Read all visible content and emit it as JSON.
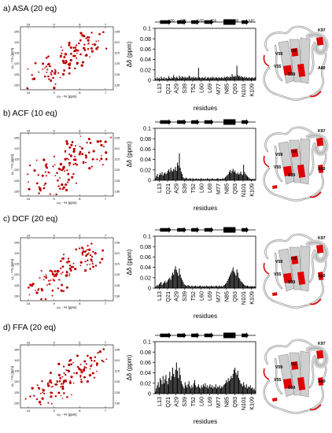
{
  "chart_data": [
    {
      "type": "bar",
      "panel_title": "a) ASA (20 eq)",
      "hsqc": {
        "x_ticks": [
          "10",
          "9",
          "8",
          "7"
        ],
        "y_ticks": [
          "105",
          "110",
          "115",
          "120",
          "125",
          "130"
        ],
        "x_label": "ω₂ - ¹H (ppm)",
        "y_label": "ω₁ - ¹⁵N (ppm)",
        "spread": 1.0
      },
      "ylabel": "Δδ (ppm)",
      "xlabel": "residues",
      "ylim": [
        0,
        0.1
      ],
      "y_ticks": [
        "0",
        "0.02",
        "0.04",
        "0.06",
        "0.08",
        "0.1"
      ],
      "x_tick_labels": [
        "L13",
        "Q21",
        "A29",
        "S39",
        "T52",
        "L60",
        "L69",
        "M77",
        "N85",
        "Q93",
        "N101",
        "K109"
      ],
      "secondary_structure_labels": [
        "I36",
        "S39",
        "V55",
        "V59",
        "A89",
        "K97"
      ],
      "structure_labels": [
        "K97",
        "V59",
        "I36",
        "V55",
        "A89",
        "S39"
      ],
      "values": [
        0.004,
        0.002,
        0.006,
        0.003,
        0.005,
        0.002,
        0.007,
        0.004,
        0.003,
        0.006,
        0.002,
        0.005,
        0.004,
        0.003,
        0.008,
        0.005,
        0.003,
        0.006,
        0.004,
        0.01,
        0.006,
        0.004,
        0.007,
        0.005,
        0.003,
        0.009,
        0.006,
        0.004,
        0.008,
        0.006,
        0.005,
        0.007,
        0.004,
        0.006,
        0.005,
        0.009,
        0.007,
        0.004,
        0.006,
        0.005,
        0.007,
        0.004,
        0.006,
        0.005,
        0.005,
        0.024,
        0.006,
        0.004,
        0.005,
        0.006,
        0.004,
        0.005,
        0.007,
        0.003,
        0.005,
        0.006,
        0.004,
        0.005,
        0.006,
        0.004,
        0.007,
        0.005,
        0.004,
        0.006,
        0.005,
        0.004,
        0.006,
        0.005,
        0.004,
        0.006,
        0.005,
        0.004,
        0.007,
        0.005,
        0.006,
        0.008,
        0.006,
        0.005,
        0.007,
        0.006,
        0.012,
        0.008,
        0.006,
        0.009,
        0.007,
        0.028,
        0.01,
        0.007,
        0.009,
        0.006,
        0.008,
        0.006,
        0.005,
        0.007,
        0.005,
        0.006,
        0.004,
        0.005,
        0.006,
        0.004,
        0.005,
        0.006,
        0.004,
        0.005,
        0.006
      ]
    },
    {
      "type": "bar",
      "panel_title": "b) ACF (10 eq)",
      "hsqc": {
        "x_ticks": [
          "10",
          "9",
          "8",
          "7"
        ],
        "y_ticks": [
          "105",
          "110",
          "115",
          "120",
          "125",
          "130"
        ],
        "x_label": "ω₂ - ¹H (ppm)",
        "y_label": "ω₁ - ¹⁵N (ppm)",
        "spread": 1.4
      },
      "ylabel": "Δδ (ppm)",
      "xlabel": "residues",
      "ylim": [
        0,
        0.1
      ],
      "y_ticks": [
        "0",
        "0.02",
        "0.04",
        "0.06",
        "0.08",
        "0.1"
      ],
      "x_tick_labels": [
        "L13",
        "Q21",
        "A29",
        "S39",
        "T52",
        "L60",
        "L69",
        "M77",
        "N85",
        "Q93",
        "N101",
        "K109"
      ],
      "secondary_structure_labels": [],
      "structure_labels": [
        "K97",
        "V59",
        "I36",
        "V55",
        "A89",
        "S39"
      ],
      "values": [
        0.004,
        0.008,
        0.012,
        0.006,
        0.01,
        0.014,
        0.011,
        0.016,
        0.009,
        0.013,
        0.015,
        0.012,
        0.014,
        0.018,
        0.021,
        0.016,
        0.024,
        0.019,
        0.017,
        0.022,
        0.02,
        0.026,
        0.018,
        0.034,
        0.028,
        0.052,
        0.024,
        0.016,
        0.012,
        0.006,
        0.004,
        0.003,
        0.005,
        0.004,
        0.002,
        0.003,
        0.004,
        0.003,
        0.002,
        0.004,
        0.003,
        0.002,
        0.003,
        0.004,
        0.002,
        0.003,
        0.002,
        0.003,
        0.004,
        0.002,
        0.003,
        0.002,
        0.003,
        0.002,
        0.004,
        0.003,
        0.002,
        0.003,
        0.002,
        0.004,
        0.003,
        0.002,
        0.003,
        0.002,
        0.003,
        0.004,
        0.003,
        0.002,
        0.003,
        0.002,
        0.004,
        0.003,
        0.004,
        0.006,
        0.008,
        0.01,
        0.012,
        0.016,
        0.02,
        0.014,
        0.018,
        0.022,
        0.016,
        0.019,
        0.014,
        0.012,
        0.015,
        0.011,
        0.013,
        0.017,
        0.012,
        0.01,
        0.03,
        0.016,
        0.012,
        0.01,
        0.008,
        0.006,
        0.004,
        0.003,
        0.002,
        0.003,
        0.002,
        0.003,
        0.002
      ]
    },
    {
      "type": "bar",
      "panel_title": "c) DCF (20 eq)",
      "hsqc": {
        "x_ticks": [
          "10",
          "9",
          "8",
          "7"
        ],
        "y_ticks": [
          "105",
          "110",
          "115",
          "120",
          "125",
          "130"
        ],
        "x_label": "ω₂ - ¹H (ppm)",
        "y_label": "ω₁ - ¹⁵N (ppm)",
        "spread": 1.15
      },
      "ylabel": "Δδ (ppm)",
      "xlabel": "residues",
      "ylim": [
        0,
        0.1
      ],
      "y_ticks": [
        "0",
        "0.02",
        "0.04",
        "0.06",
        "0.08",
        "0.1"
      ],
      "x_tick_labels": [
        "L13",
        "Q21",
        "A29",
        "S39",
        "T52",
        "L60",
        "L69",
        "M77",
        "N85",
        "Q93",
        "N101",
        "K109"
      ],
      "secondary_structure_labels": [],
      "structure_labels": [
        "K97",
        "V59",
        "I36",
        "V55",
        "A89",
        "S39"
      ],
      "values": [
        0.002,
        0.004,
        0.006,
        0.005,
        0.008,
        0.01,
        0.012,
        0.006,
        0.009,
        0.011,
        0.014,
        0.01,
        0.012,
        0.015,
        0.018,
        0.02,
        0.016,
        0.024,
        0.03,
        0.026,
        0.036,
        0.042,
        0.035,
        0.03,
        0.024,
        0.038,
        0.026,
        0.02,
        0.016,
        0.012,
        0.008,
        0.006,
        0.005,
        0.004,
        0.006,
        0.005,
        0.004,
        0.003,
        0.005,
        0.004,
        0.003,
        0.004,
        0.005,
        0.003,
        0.004,
        0.003,
        0.004,
        0.005,
        0.003,
        0.004,
        0.003,
        0.004,
        0.003,
        0.005,
        0.004,
        0.003,
        0.004,
        0.003,
        0.005,
        0.004,
        0.003,
        0.004,
        0.003,
        0.005,
        0.004,
        0.003,
        0.004,
        0.005,
        0.003,
        0.004,
        0.003,
        0.005,
        0.006,
        0.008,
        0.01,
        0.014,
        0.018,
        0.022,
        0.026,
        0.03,
        0.034,
        0.04,
        0.032,
        0.028,
        0.024,
        0.036,
        0.03,
        0.02,
        0.018,
        0.014,
        0.012,
        0.01,
        0.008,
        0.006,
        0.005,
        0.004,
        0.005,
        0.004,
        0.003,
        0.004,
        0.003,
        0.004,
        0.003,
        0.004,
        0.003
      ]
    },
    {
      "type": "bar",
      "panel_title": "d) FFA (20 eq)",
      "hsqc": {
        "x_ticks": [
          "10",
          "9",
          "8",
          "7"
        ],
        "y_ticks": [
          "105",
          "110",
          "115",
          "120",
          "125",
          "130"
        ],
        "x_label": "ω₂ - ¹H (ppm)",
        "y_label": "ω₁ - ¹⁵N (ppm)",
        "spread": 1.15
      },
      "ylabel": "Δδ (ppm)",
      "xlabel": "residues",
      "ylim": [
        0,
        0.1
      ],
      "y_ticks": [
        "0",
        "0.02",
        "0.04",
        "0.06",
        "0.08",
        "0.1"
      ],
      "x_tick_labels": [
        "L13",
        "Q21",
        "A29",
        "S39",
        "T52",
        "L60",
        "L69",
        "M77",
        "N85",
        "Q93",
        "N101",
        "K109"
      ],
      "secondary_structure_labels": [],
      "structure_labels": [
        "K97",
        "V59",
        "I36",
        "V55",
        "A89",
        "S39"
      ],
      "values": [
        0.004,
        0.01,
        0.016,
        0.022,
        0.012,
        0.03,
        0.026,
        0.018,
        0.034,
        0.02,
        0.028,
        0.036,
        0.024,
        0.018,
        0.03,
        0.042,
        0.026,
        0.034,
        0.05,
        0.038,
        0.032,
        0.046,
        0.06,
        0.044,
        0.03,
        0.05,
        0.036,
        0.024,
        0.018,
        0.014,
        0.01,
        0.022,
        0.016,
        0.012,
        0.018,
        0.024,
        0.014,
        0.01,
        0.016,
        0.012,
        0.02,
        0.026,
        0.016,
        0.012,
        0.014,
        0.018,
        0.012,
        0.01,
        0.016,
        0.012,
        0.018,
        0.014,
        0.02,
        0.012,
        0.016,
        0.01,
        0.014,
        0.018,
        0.012,
        0.016,
        0.01,
        0.014,
        0.012,
        0.018,
        0.01,
        0.014,
        0.012,
        0.016,
        0.01,
        0.014,
        0.012,
        0.016,
        0.018,
        0.02,
        0.026,
        0.022,
        0.03,
        0.024,
        0.028,
        0.034,
        0.03,
        0.038,
        0.046,
        0.05,
        0.04,
        0.036,
        0.044,
        0.03,
        0.026,
        0.02,
        0.018,
        0.014,
        0.022,
        0.016,
        0.012,
        0.018,
        0.01,
        0.014,
        0.012,
        0.016,
        0.01,
        0.012,
        0.008,
        0.01,
        0.006
      ]
    }
  ]
}
